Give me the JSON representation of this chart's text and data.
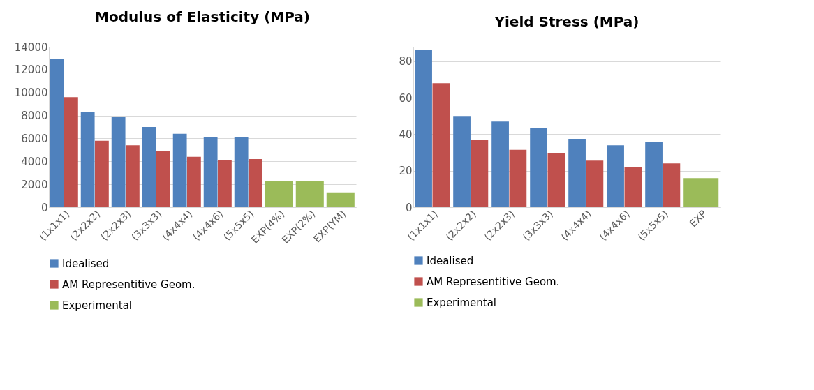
{
  "chart_data": [
    {
      "type": "bar",
      "title": "Modulus of Elasticity (MPa)",
      "categories": [
        "(1x1x1)",
        "(2x2x2)",
        "(2x2x3)",
        "(3x3x3)",
        "(4x4x4)",
        "(4x4x6)",
        "(5x5x5)",
        "EXP(4%)",
        "EXP(2%)",
        "EXP(YM)"
      ],
      "series": [
        {
          "name": "Idealised",
          "color": "#4f81bd",
          "values": [
            12900,
            8300,
            7900,
            7000,
            6400,
            6100,
            6100,
            null,
            null,
            null
          ]
        },
        {
          "name": "AM Representitive Geom.",
          "color": "#c0504d",
          "values": [
            9600,
            5800,
            5400,
            4900,
            4400,
            4100,
            4200,
            null,
            null,
            null
          ]
        },
        {
          "name": "Experimental",
          "color": "#9bbb59",
          "values": [
            null,
            null,
            null,
            null,
            null,
            null,
            null,
            2300,
            2300,
            1300
          ]
        }
      ],
      "ylim": [
        0,
        14000
      ],
      "yticks": [
        0,
        2000,
        4000,
        6000,
        8000,
        10000,
        12000,
        14000
      ],
      "grid": "y",
      "legend": "bottom"
    },
    {
      "type": "bar",
      "title": "Yield Stress (MPa)",
      "categories": [
        "(1x1x1)",
        "(2x2x2)",
        "(2x2x3)",
        "(3x3x3)",
        "(4x4x4)",
        "(4x4x6)",
        "(5x5x5)",
        "EXP"
      ],
      "series": [
        {
          "name": "Idealised",
          "color": "#4f81bd",
          "values": [
            86.5,
            50,
            47,
            43.5,
            37.5,
            34,
            36,
            null
          ]
        },
        {
          "name": "AM Representitive Geom.",
          "color": "#c0504d",
          "values": [
            68,
            37,
            31.5,
            29.5,
            25.5,
            22,
            24,
            null
          ]
        },
        {
          "name": "Experimental",
          "color": "#9bbb59",
          "values": [
            null,
            null,
            null,
            null,
            null,
            null,
            null,
            16
          ]
        }
      ],
      "ylim": [
        0,
        88
      ],
      "yticks": [
        0,
        20,
        40,
        60,
        80
      ],
      "grid": "y",
      "legend": "bottom"
    }
  ]
}
